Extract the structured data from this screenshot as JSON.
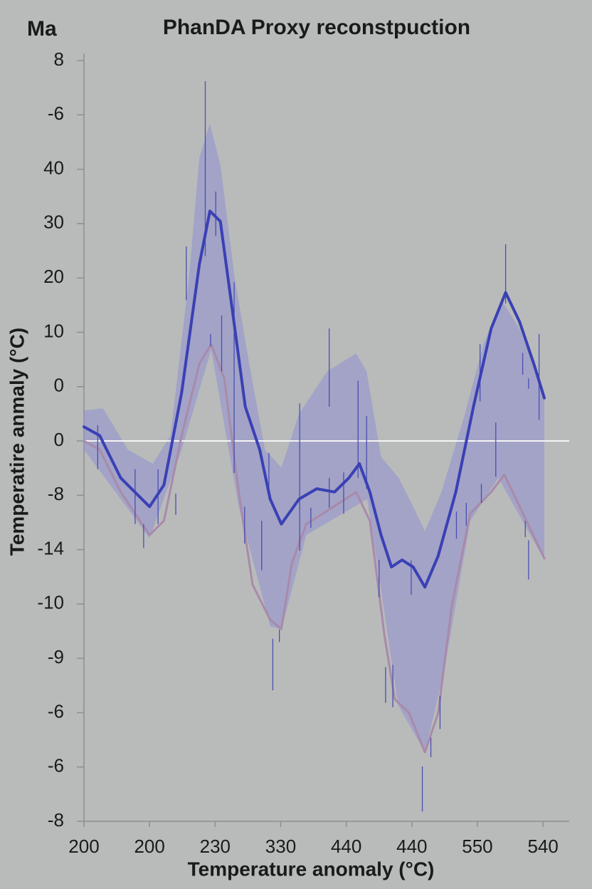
{
  "chart_data": {
    "type": "line",
    "title": "PhanDA Proxy reconstpuction",
    "corner_label": "Ma",
    "x_label": "Temperature anomaly (°C)",
    "y_label": "Temperatire anmaly (°C)",
    "background": "#b8bbba",
    "zero_line": true,
    "xlim": [
      0,
      7.4
    ],
    "ylim": [
      -7,
      7
    ],
    "xticks": [
      {
        "value": 0,
        "label": "200"
      },
      {
        "value": 1,
        "label": "200"
      },
      {
        "value": 2,
        "label": "230"
      },
      {
        "value": 3,
        "label": "330"
      },
      {
        "value": 4,
        "label": "440"
      },
      {
        "value": 5,
        "label": "440"
      },
      {
        "value": 6,
        "label": "550"
      },
      {
        "value": 7,
        "label": "540"
      }
    ],
    "yticks": [
      {
        "value": 7,
        "label": "8"
      },
      {
        "value": 6,
        "label": "-6"
      },
      {
        "value": 5,
        "label": "40"
      },
      {
        "value": 4,
        "label": "30"
      },
      {
        "value": 3,
        "label": "20"
      },
      {
        "value": 2,
        "label": "10"
      },
      {
        "value": 1,
        "label": "0"
      },
      0,
      {
        "value": -1,
        "label": "-8"
      },
      {
        "value": -2,
        "label": "-14"
      },
      {
        "value": -3,
        "label": "-10"
      },
      {
        "value": -4,
        "label": "-9"
      },
      {
        "value": -5,
        "label": "-6"
      },
      {
        "value": -6,
        "label": "-6"
      },
      {
        "value": -7,
        "label": "-8"
      }
    ],
    "band": {
      "color": "#8f90d2",
      "upper": {
        "x": [
          0,
          0.29,
          0.67,
          1.05,
          1.32,
          1.6,
          1.76,
          1.92,
          2.08,
          2.3,
          2.52,
          2.76,
          3.01,
          3.28,
          3.71,
          4.15,
          4.31,
          4.53,
          4.8,
          5.02,
          5.2,
          5.45,
          5.78,
          6.1,
          6.37,
          6.64,
          7.02
        ],
        "values": [
          0.56,
          0.6,
          -0.16,
          -0.42,
          0.1,
          2.99,
          5.21,
          5.84,
          5.08,
          2.99,
          1.42,
          -0.16,
          -0.49,
          0.5,
          1.28,
          1.61,
          1.28,
          -0.29,
          -0.68,
          -1.21,
          -1.66,
          -0.94,
          0.37,
          1.81,
          2.59,
          2.07,
          0.89
        ]
      },
      "lower": {
        "x": [
          0,
          0.56,
          1.0,
          1.49,
          1.94,
          2.36,
          2.84,
          3.01,
          3.39,
          4.32,
          4.47,
          4.79,
          5.2,
          5.5,
          5.89,
          6.32,
          7.02
        ],
        "values": [
          -0.16,
          -1.07,
          -1.79,
          -0.16,
          1.68,
          -1.21,
          -3.41,
          -3.47,
          -1.73,
          -1.07,
          -2.25,
          -4.86,
          -5.73,
          -4.19,
          -1.47,
          -0.68,
          -2.19
        ]
      }
    },
    "lower_line": {
      "color": "#a98aa9",
      "x": [
        0,
        0.24,
        0.56,
        1.0,
        1.22,
        1.49,
        1.76,
        1.94,
        2.14,
        2.36,
        2.57,
        2.84,
        3.01,
        3.17,
        3.39,
        3.82,
        4.15,
        4.36,
        4.58,
        4.74,
        4.96,
        5.2,
        5.4,
        5.61,
        5.89,
        6.21,
        6.41,
        6.64,
        7.02
      ],
      "values": [
        0,
        -0.16,
        -0.94,
        -1.73,
        -1.47,
        0.1,
        1.42,
        1.78,
        1.15,
        -0.94,
        -2.64,
        -3.29,
        -3.46,
        -2.25,
        -1.53,
        -1.2,
        -0.94,
        -1.47,
        -3.56,
        -4.75,
        -5.01,
        -5.73,
        -5.01,
        -3.03,
        -1.34,
        -0.94,
        -0.62,
        -1.2,
        -2.16
      ]
    },
    "mean": {
      "color": "#3a40b4",
      "x": [
        0,
        0.24,
        0.56,
        1.0,
        1.22,
        1.49,
        1.76,
        1.92,
        2.08,
        2.3,
        2.46,
        2.68,
        2.84,
        3.01,
        3.28,
        3.55,
        3.82,
        4.04,
        4.2,
        4.36,
        4.53,
        4.69,
        4.85,
        5.02,
        5.2,
        5.4,
        5.67,
        5.94,
        6.21,
        6.43,
        6.64,
        6.86,
        7.02
      ],
      "values": [
        0.26,
        0.1,
        -0.68,
        -1.21,
        -0.81,
        0.89,
        3.25,
        4.23,
        4.04,
        2.07,
        0.63,
        -0.16,
        -1.07,
        -1.53,
        -1.07,
        -0.88,
        -0.94,
        -0.68,
        -0.42,
        -0.94,
        -1.73,
        -2.32,
        -2.19,
        -2.32,
        -2.69,
        -2.12,
        -0.94,
        0.63,
        2.07,
        2.73,
        2.2,
        1.42,
        0.79
      ]
    },
    "error_bars": {
      "color": "#4a4fb0",
      "x": [
        0.21,
        0.78,
        0.91,
        1.13,
        1.4,
        1.56,
        1.85,
        1.93,
        2.01,
        2.1,
        2.29,
        2.45,
        2.71,
        2.82,
        2.88,
        2.98,
        3.29,
        3.46,
        3.74,
        3.74,
        3.96,
        4.18,
        4.31,
        4.5,
        4.6,
        4.71,
        4.99,
        5.16,
        5.29,
        5.43,
        5.68,
        5.83,
        6.04,
        6.06,
        6.28,
        6.43,
        6.69,
        6.78,
        6.73,
        6.78,
        6.94
      ],
      "high": [
        0.29,
        -0.52,
        -1.53,
        -0.52,
        -0.97,
        3.58,
        6.62,
        1.97,
        4.59,
        2.31,
        2.92,
        -1.21,
        -1.47,
        -0.22,
        -3.64,
        -3.47,
        0.69,
        -1.23,
        2.07,
        -0.68,
        -0.58,
        1.11,
        0.46,
        -2.19,
        -4.16,
        -4.12,
        -2.2,
        -5.99,
        -5.46,
        -4.69,
        -1.3,
        -1.14,
        1.78,
        -0.79,
        0.34,
        3.62,
        1.62,
        1.15,
        -1.47,
        -1.83,
        1.97
      ],
      "low": [
        -0.52,
        -1.53,
        -1.97,
        -1.53,
        -1.36,
        2.59,
        3.4,
        1.74,
        3.77,
        1.28,
        -0.59,
        -1.89,
        -2.38,
        -1.07,
        -4.59,
        -3.7,
        -2.02,
        -1.6,
        0.63,
        -1.23,
        -1.34,
        -0.68,
        -0.88,
        -2.88,
        -4.82,
        -4.9,
        -2.83,
        -6.82,
        -5.82,
        -5.3,
        -1.8,
        -1.56,
        0.73,
        -1.14,
        -0.66,
        2.53,
        1.22,
        0.96,
        -1.77,
        -2.55,
        0.39
      ]
    }
  }
}
